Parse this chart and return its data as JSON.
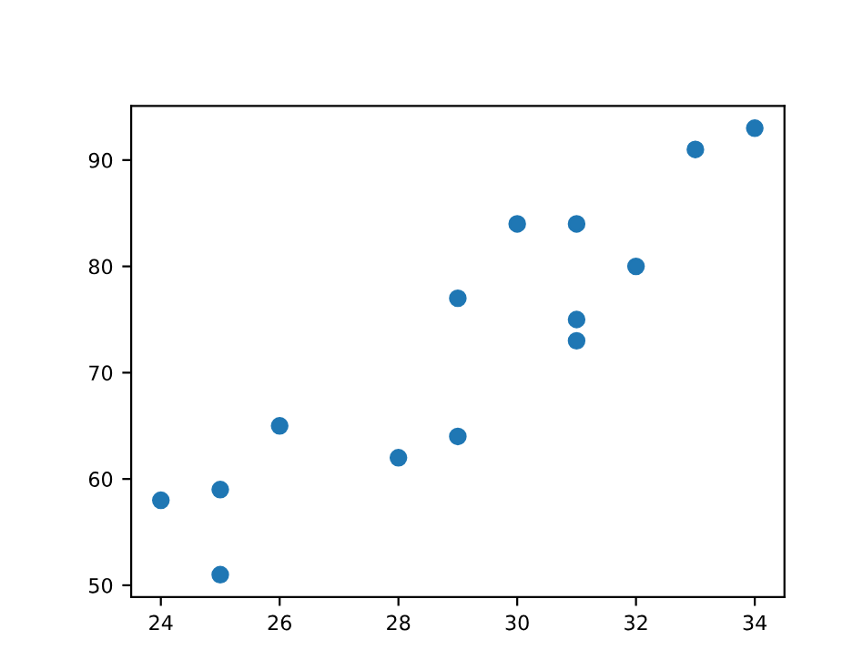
{
  "chart_data": {
    "type": "scatter",
    "x": [
      24,
      25,
      25,
      26,
      28,
      29,
      29,
      30,
      31,
      31,
      31,
      32,
      33,
      34
    ],
    "series": [
      {
        "color": "#1f77b4",
        "values": [
          58,
          59,
          51,
          65,
          62,
          77,
          64,
          84,
          84,
          75,
          73,
          80,
          91,
          93
        ]
      }
    ],
    "xlim": [
      23.5,
      34.5
    ],
    "ylim": [
      48.9,
      95.1
    ],
    "xticks": [
      24,
      26,
      28,
      30,
      32,
      34
    ],
    "yticks": [
      50,
      60,
      70,
      80,
      90
    ],
    "marker": "circle",
    "grid": false,
    "legend": false
  }
}
